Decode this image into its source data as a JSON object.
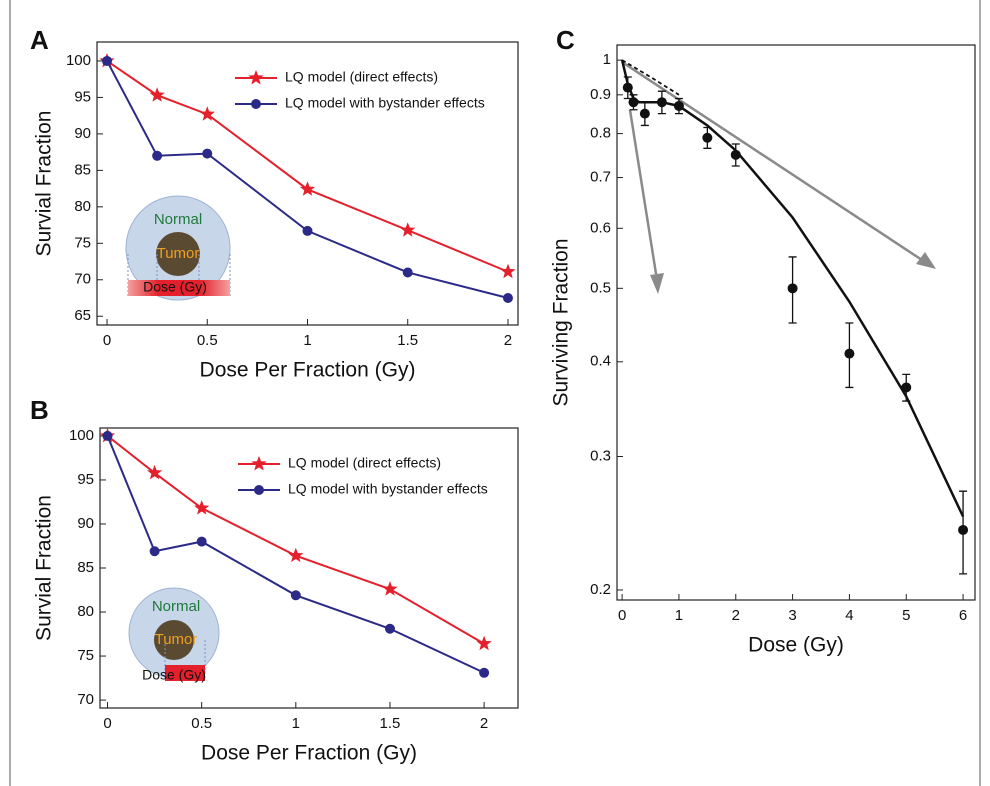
{
  "chart_data": [
    {
      "type": "line",
      "panel_label": "A",
      "x_label": "Dose Per Fraction (Gy)",
      "y_label": "Survial Fraction",
      "x": [
        0,
        0.25,
        0.5,
        1,
        1.5,
        2
      ],
      "series": [
        {
          "name": "LQ model (direct effects)",
          "color": "#e3202b",
          "marker": "star",
          "values": [
            100,
            95.3,
            92.7,
            82.4,
            76.8,
            71.1
          ]
        },
        {
          "name": "LQ model with bystander effects",
          "color": "#2c2a88",
          "marker": "circle",
          "values": [
            100,
            87.0,
            87.3,
            76.7,
            71.0,
            67.5
          ]
        }
      ],
      "xlim": [
        -0.05,
        2.05
      ],
      "xticks": [
        0,
        0.5,
        1,
        1.5,
        2
      ],
      "ylim": [
        63.8,
        102.6
      ],
      "yticks": [
        65,
        70,
        75,
        80,
        85,
        90,
        95,
        100
      ],
      "legend": "upper right",
      "annotations": [
        "Normal",
        "Tumor",
        "Dose (Gy)"
      ]
    },
    {
      "type": "line",
      "panel_label": "B",
      "x_label": "Dose Per Fraction (Gy)",
      "y_label": "Survial Fraction",
      "x": [
        0,
        0.25,
        0.5,
        1,
        1.5,
        2
      ],
      "series": [
        {
          "name": "LQ model (direct effects)",
          "color": "#e3202b",
          "marker": "star",
          "values": [
            100,
            95.8,
            91.8,
            86.4,
            82.6,
            76.4
          ]
        },
        {
          "name": "LQ model with bystander effects",
          "color": "#2c2a88",
          "marker": "circle",
          "values": [
            100,
            86.9,
            88.0,
            81.9,
            78.1,
            73.1
          ]
        }
      ],
      "xlim": [
        -0.04,
        2.18
      ],
      "xticks": [
        0,
        0.5,
        1,
        1.5,
        2
      ],
      "ylim": [
        69.1,
        100.9
      ],
      "yticks": [
        70,
        75,
        80,
        85,
        90,
        95,
        100
      ],
      "legend": "upper right",
      "annotations": [
        "Normal",
        "Tumor",
        "Dose (Gy)"
      ]
    },
    {
      "type": "scatter",
      "panel_label": "C",
      "x_label": "Dose (Gy)",
      "y_label": "Surviving Fraction",
      "series": [
        {
          "kind": "points",
          "color": "#111111",
          "x": [
            0.1,
            0.2,
            0.4,
            0.7,
            1,
            1.5,
            2,
            3,
            4,
            5,
            6
          ],
          "values": [
            0.92,
            0.88,
            0.85,
            0.88,
            0.87,
            0.79,
            0.75,
            0.5,
            0.41,
            0.37,
            0.24
          ],
          "errors": [
            0.03,
            0.02,
            0.03,
            0.03,
            0.02,
            0.025,
            0.025,
            0.05,
            0.04,
            0.015,
            0.03
          ]
        },
        {
          "kind": "line",
          "color": "#111111",
          "style": "solid",
          "x": [
            0,
            0.1,
            0.2,
            0.3,
            0.5,
            0.7,
            1,
            1.5,
            2,
            3,
            4,
            5,
            6
          ],
          "values": [
            1,
            0.93,
            0.89,
            0.88,
            0.88,
            0.88,
            0.87,
            0.82,
            0.76,
            0.62,
            0.48,
            0.36,
            0.25
          ]
        },
        {
          "kind": "line",
          "color": "#111111",
          "style": "dashed",
          "x": [
            0,
            0.5,
            1
          ],
          "values": [
            1,
            0.95,
            0.9
          ]
        }
      ],
      "xlim": [
        -0.09,
        6.21
      ],
      "xticks": [
        0,
        1,
        2,
        3,
        4,
        5,
        6
      ],
      "ylim": [
        0.194,
        1.047
      ],
      "yticks": [
        0.2,
        0.3,
        0.4,
        0.5,
        0.6,
        0.7,
        0.8,
        0.9,
        1
      ],
      "log_y": true
    }
  ]
}
